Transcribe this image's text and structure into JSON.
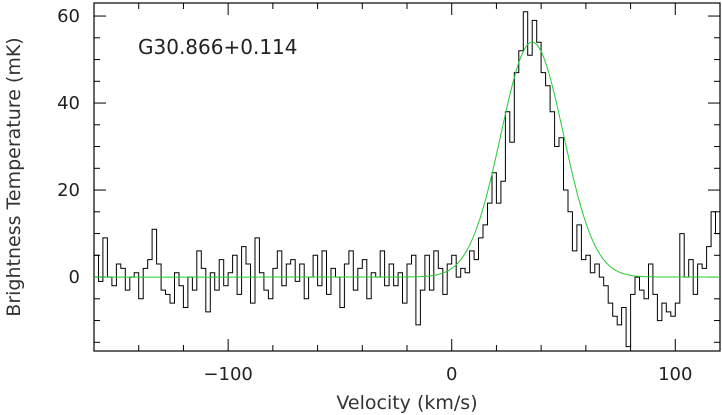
{
  "chart_data": {
    "type": "line",
    "title": "",
    "annotation": "G30.866+0.114",
    "xlabel": "Velocity (km/s)",
    "ylabel": "Brightness Temperature (mK)",
    "xlim": [
      -160,
      120
    ],
    "ylim": [
      -17,
      63
    ],
    "x_ticks": [
      -100,
      0,
      100
    ],
    "x_tick_labels": [
      "−100",
      "0",
      "100"
    ],
    "y_ticks": [
      0,
      20,
      40,
      60
    ],
    "y_tick_labels": [
      "0",
      "20",
      "40",
      "60"
    ],
    "grid": false,
    "legend": "none",
    "series": [
      {
        "style": "steps",
        "color": "#000000",
        "x": [
          -160,
          -158,
          -156,
          -154,
          -152,
          -150,
          -148,
          -146,
          -144,
          -142,
          -140,
          -138,
          -136,
          -134,
          -132,
          -130,
          -128,
          -126,
          -124,
          -122,
          -120,
          -118,
          -116,
          -114,
          -112,
          -110,
          -108,
          -106,
          -104,
          -102,
          -100,
          -98,
          -96,
          -94,
          -92,
          -90,
          -88,
          -86,
          -84,
          -82,
          -80,
          -78,
          -76,
          -74,
          -72,
          -70,
          -68,
          -66,
          -64,
          -62,
          -60,
          -58,
          -56,
          -54,
          -52,
          -50,
          -48,
          -46,
          -44,
          -42,
          -40,
          -38,
          -36,
          -34,
          -32,
          -30,
          -28,
          -26,
          -24,
          -22,
          -20,
          -18,
          -16,
          -14,
          -12,
          -10,
          -8,
          -6,
          -4,
          -2,
          0,
          2,
          4,
          6,
          8,
          10,
          12,
          14,
          16,
          18,
          20,
          22,
          24,
          26,
          28,
          30,
          32,
          34,
          36,
          38,
          40,
          42,
          44,
          46,
          48,
          50,
          52,
          54,
          56,
          58,
          60,
          62,
          64,
          66,
          68,
          70,
          72,
          74,
          76,
          78,
          80,
          82,
          84,
          86,
          88,
          90,
          92,
          94,
          96,
          98,
          100,
          102,
          104,
          106,
          108,
          110,
          112,
          114,
          116,
          118
        ],
        "values": [
          5,
          -1,
          9,
          0,
          -2,
          3,
          2,
          -3,
          0,
          1,
          -5,
          2,
          4,
          11,
          3,
          -3,
          -4,
          -6,
          1,
          -2,
          -7,
          0,
          -3,
          6,
          2,
          -8,
          1,
          -3,
          4,
          -2,
          1,
          5,
          -4,
          7,
          3,
          -6,
          9,
          1,
          -3,
          -5,
          2,
          6,
          -2,
          3,
          4,
          -1,
          3,
          -5,
          0,
          5,
          -2,
          6,
          -4,
          2,
          0,
          -7,
          3,
          6,
          -3,
          2,
          4,
          -5,
          1,
          0,
          6,
          -2,
          3,
          -2,
          1,
          -6,
          3,
          5,
          -11,
          -3,
          5,
          -3,
          6,
          2,
          -4,
          3,
          5,
          0,
          2,
          1,
          6,
          4,
          9,
          12,
          17,
          24,
          17,
          22,
          38,
          31,
          47,
          52,
          61,
          51,
          59,
          54,
          47,
          44,
          38,
          30,
          32,
          20,
          15,
          6,
          12,
          4,
          5,
          1,
          3,
          0,
          -2,
          -6,
          -9,
          -11,
          -7,
          -16,
          -4,
          0,
          -3,
          -5,
          3,
          -4,
          -10,
          -6,
          -8,
          -9,
          -6,
          10,
          0,
          4,
          -4,
          3,
          2,
          7,
          15,
          10
        ]
      },
      {
        "style": "gaussian-fit",
        "color": "#22cc33",
        "amplitude": 54,
        "center": 36,
        "fwhm": 33
      }
    ]
  }
}
